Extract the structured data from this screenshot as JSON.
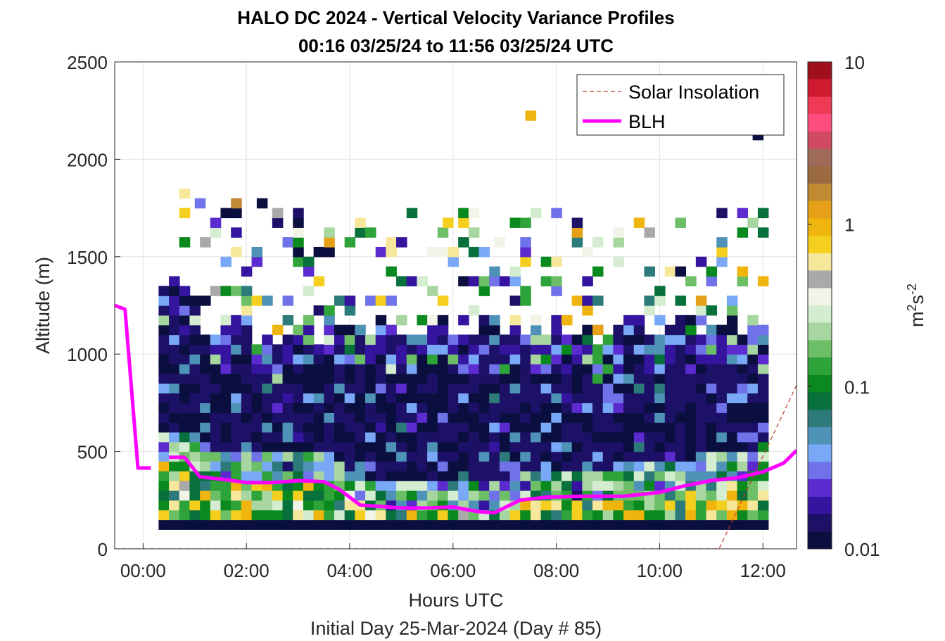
{
  "chart_data": {
    "type": "heatmap",
    "title": "HALO DC 2024 - Vertical Velocity Variance Profiles",
    "subtitle": "00:16 03/25/24 to 11:56 03/25/24  UTC",
    "xlabel": "Hours UTC",
    "xlabel2": "Initial Day 25-Mar-2024 (Day # 85)",
    "ylabel": "Altitude (m)",
    "xlim": [
      -0.55,
      12.65
    ],
    "ylim": [
      0,
      2500
    ],
    "x_ticks": [
      0,
      2,
      4,
      6,
      8,
      10,
      12
    ],
    "x_tick_labels": [
      "00:00",
      "02:00",
      "04:00",
      "06:00",
      "08:00",
      "10:00",
      "12:00"
    ],
    "y_ticks": [
      0,
      500,
      1000,
      1500,
      2000,
      2500
    ],
    "y_tick_labels": [
      "0",
      "500",
      "1000",
      "1500",
      "2000",
      "2500"
    ],
    "grid": true,
    "legend_position": "top-right",
    "colorbar": {
      "label": "m²s⁻²",
      "label_base": "m",
      "label_exp1": "2",
      "label_mid": "s",
      "label_exp2": "-2",
      "scale": "log",
      "range": [
        0.01,
        10
      ],
      "tick_labels": [
        "0.01",
        "0.1",
        "1",
        "10"
      ],
      "colormap": [
        "#0b0f3f",
        "#1c1167",
        "#3515a0",
        "#5c2bd0",
        "#6f72e8",
        "#78a8f6",
        "#4f92b8",
        "#2c7a7a",
        "#08703a",
        "#0a8a1e",
        "#2ea33a",
        "#6cbf66",
        "#a8d6a0",
        "#d4ecd0",
        "#f2f4e8",
        "#a9a9a9",
        "#f7e79a",
        "#f5cf1d",
        "#f0b40e",
        "#e5a017",
        "#c08a33",
        "#9c6a40",
        "#a06a58",
        "#d04a62",
        "#ff4d7e",
        "#f03a55",
        "#d01a30",
        "#a00f1c"
      ]
    },
    "series": [
      {
        "name": "Solar Insolation",
        "style": "dashed",
        "color": "#c0392b",
        "x": [
          -0.55,
          11.15,
          12.65
        ],
        "y": [
          0,
          0,
          840
        ]
      },
      {
        "name": "BLH",
        "style": "solid",
        "color": "#ff00ff",
        "segments": [
          {
            "x": [
              -0.55,
              -0.35,
              -0.1,
              0.15
            ],
            "y": [
              1250,
              1230,
              415,
              415
            ]
          },
          {
            "x": [
              0.5,
              0.8,
              1.1,
              1.6,
              2.0,
              2.5,
              3.0,
              3.5,
              3.8,
              4.2,
              5.0,
              5.5,
              6.0,
              6.5,
              6.8,
              7.3,
              7.8,
              8.5,
              9.3,
              10.0,
              10.5,
              11.0,
              11.5,
              12.0,
              12.4,
              12.65
            ],
            "y": [
              470,
              470,
              370,
              355,
              340,
              340,
              350,
              345,
              305,
              225,
              210,
              210,
              215,
              190,
              185,
              250,
              265,
              270,
              270,
              290,
              325,
              350,
              365,
              395,
              440,
              505
            ]
          }
        ]
      }
    ],
    "heatmap_values": {
      "description_key": "variance (m2 s-2)",
      "x_range": [
        0.3,
        11.92
      ],
      "bin_heights_m": 50,
      "cells": [
        {
          "h": 2200,
          "t": 7.4,
          "v": 0.9
        },
        {
          "h": 2100,
          "t": 11.8,
          "v": 0.01
        },
        {
          "h": 1800,
          "t": 0.7,
          "v": 0.6
        },
        {
          "h": 1750,
          "t": 1.0,
          "v": 0.03
        },
        {
          "h": 1750,
          "t": 1.7,
          "v": 1.5
        },
        {
          "h": 1750,
          "t": 2.2,
          "v": 0.01
        },
        {
          "h": 1700,
          "t": 5.1,
          "v": 0.08
        },
        {
          "h": 1650,
          "t": 5.8,
          "v": 0.8
        },
        {
          "h": 1600,
          "t": 6.3,
          "v": 0.2
        },
        {
          "h": 1550,
          "t": 6.8,
          "v": 0.4
        }
      ]
    }
  }
}
